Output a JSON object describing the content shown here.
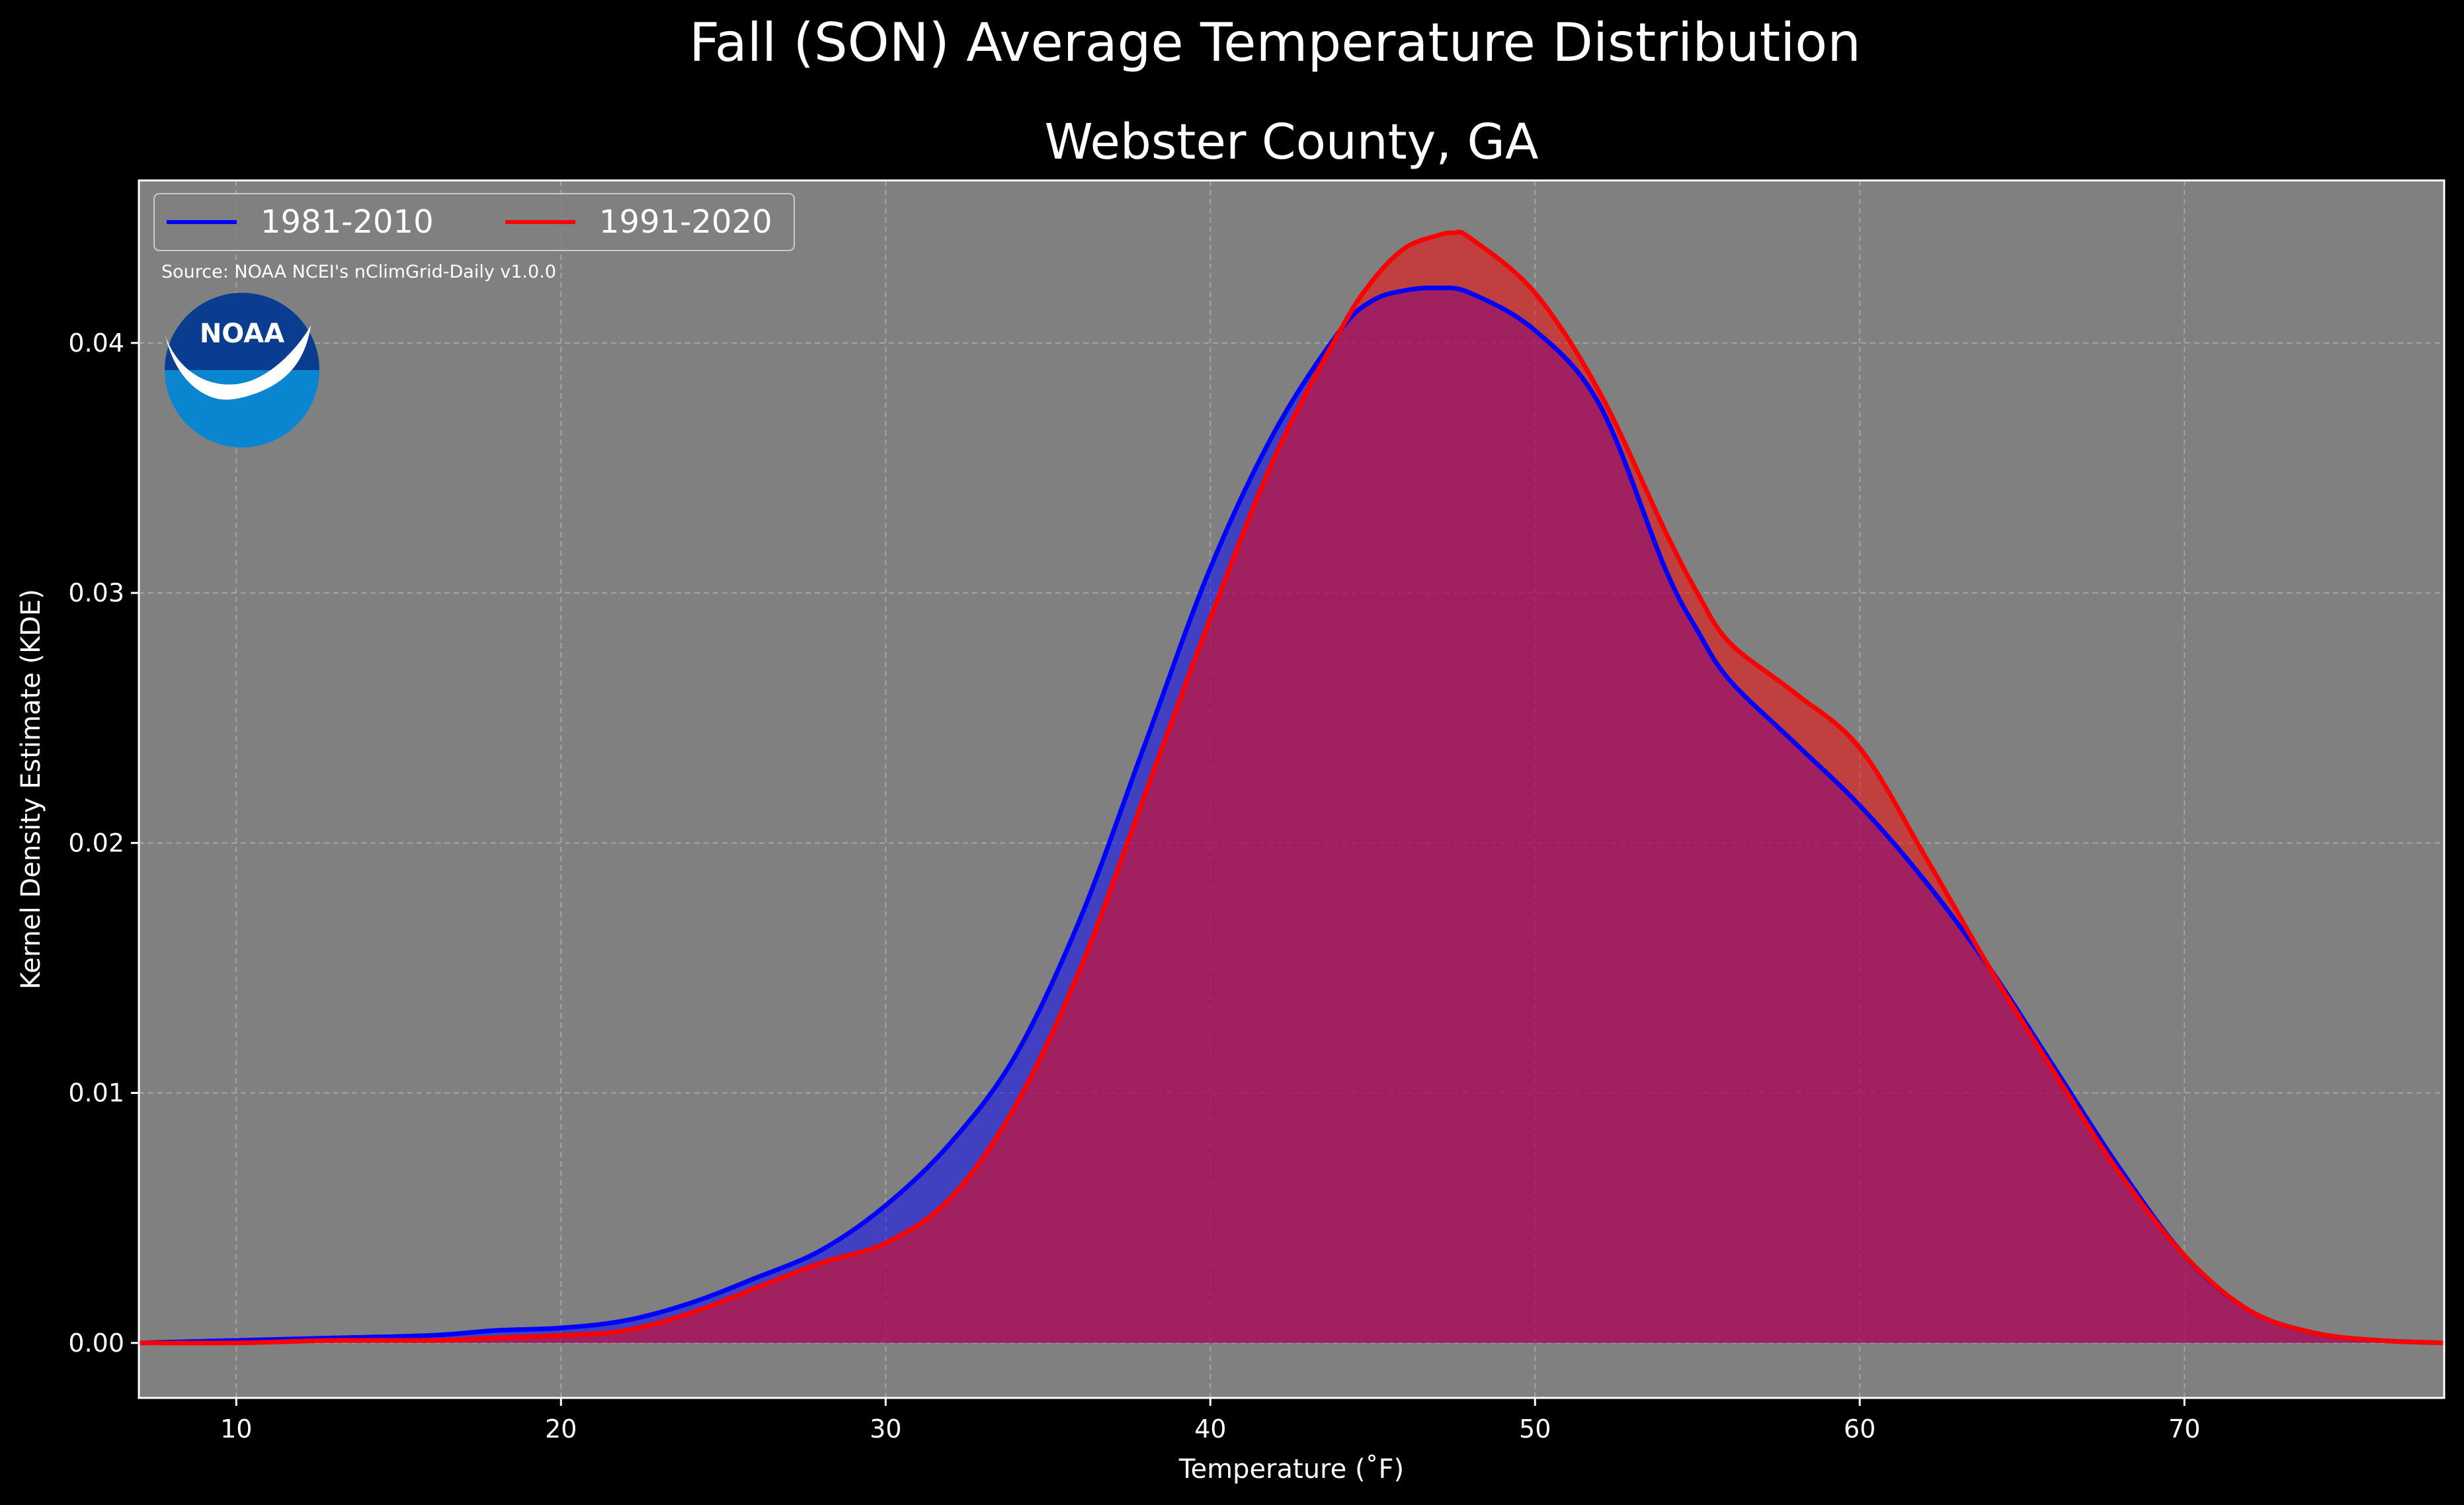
{
  "figure_title": "Fall (SON) Average Temperature Distribution",
  "source_note": "Source: NOAA NCEI's nClimGrid-Daily v1.0.0",
  "logo_text": "NOAA",
  "colors": {
    "background": "#000000",
    "plot_background": "#808080",
    "grid": "#b3b3b3",
    "series_1981_2010": "#0000ff",
    "series_1991_2020": "#ff0000",
    "overlap_fill": "#9c1d5c",
    "logo_dark": "#0a3d8f",
    "logo_light": "#0a86d0"
  },
  "chart_data": {
    "type": "area",
    "title": "Webster County, GA",
    "xlabel": "Temperature (˚F)",
    "ylabel": "Kernel Density Estimate (KDE)",
    "xlim": [
      7,
      78
    ],
    "ylim": [
      -0.0022,
      0.0465
    ],
    "x_ticks": [
      10,
      20,
      30,
      40,
      50,
      60,
      70
    ],
    "y_ticks": [
      0.0,
      0.01,
      0.02,
      0.03,
      0.04
    ],
    "y_tick_labels": [
      "0.00",
      "0.01",
      "0.02",
      "0.03",
      "0.04"
    ],
    "grid": true,
    "legend_position": "top-left",
    "series": [
      {
        "name": "1981-2010",
        "x": [
          7,
          10,
          13,
          16,
          18,
          20,
          22,
          24,
          26,
          28,
          30,
          32,
          34,
          36,
          38,
          40,
          42,
          44,
          45,
          46,
          47,
          48,
          50,
          52,
          54,
          55,
          56,
          58,
          60,
          62,
          64,
          66,
          68,
          70,
          72,
          74,
          76,
          78
        ],
        "y": [
          0,
          0.0001,
          0.0002,
          0.0003,
          0.0005,
          0.0006,
          0.0009,
          0.0016,
          0.0026,
          0.0037,
          0.0055,
          0.008,
          0.0115,
          0.017,
          0.024,
          0.031,
          0.0365,
          0.0405,
          0.0417,
          0.0421,
          0.0422,
          0.042,
          0.0405,
          0.0375,
          0.031,
          0.0285,
          0.0265,
          0.024,
          0.0215,
          0.0185,
          0.015,
          0.011,
          0.007,
          0.0035,
          0.0013,
          0.0004,
          0.0001,
          0
        ]
      },
      {
        "name": "1991-2020",
        "x": [
          7,
          10,
          13,
          16,
          18,
          20,
          22,
          24,
          26,
          28,
          30,
          32,
          34,
          36,
          38,
          40,
          42,
          44,
          45,
          46,
          47,
          47.5,
          48,
          50,
          52,
          54,
          55,
          56,
          58,
          60,
          62,
          64,
          66,
          68,
          70,
          72,
          74,
          76,
          78
        ],
        "y": [
          0,
          0,
          0.0001,
          0.0001,
          0.0002,
          0.0003,
          0.0005,
          0.0012,
          0.0022,
          0.0032,
          0.004,
          0.0058,
          0.0095,
          0.015,
          0.022,
          0.029,
          0.0355,
          0.0405,
          0.0425,
          0.0438,
          0.0443,
          0.0444,
          0.0442,
          0.042,
          0.038,
          0.0325,
          0.03,
          0.028,
          0.026,
          0.0238,
          0.0195,
          0.015,
          0.0108,
          0.0068,
          0.0035,
          0.0013,
          0.0004,
          0.0001,
          0
        ]
      }
    ]
  }
}
